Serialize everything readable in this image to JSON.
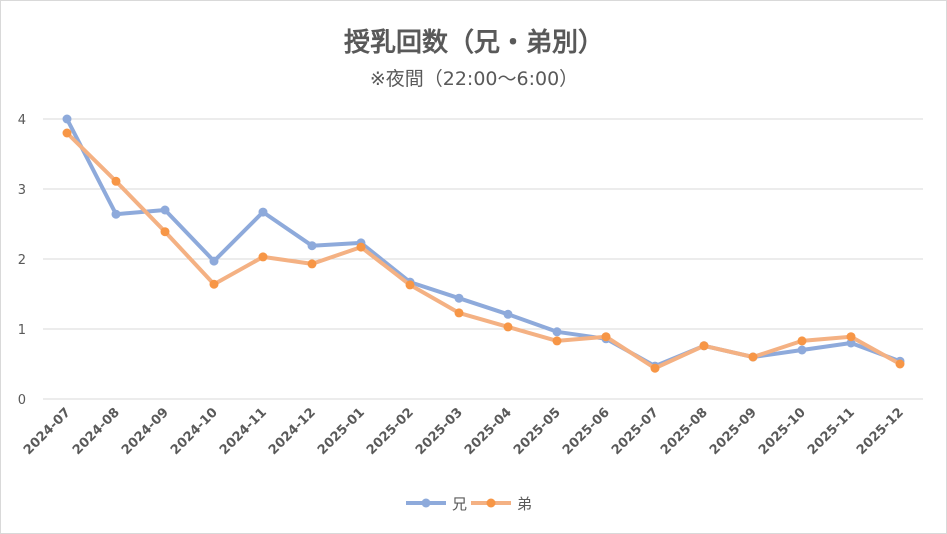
{
  "chart_data": {
    "type": "line",
    "title": "授乳回数（兄・弟別）",
    "subtitle": "※夜間（22:00～6:00）",
    "xlabel": "",
    "ylabel": "",
    "ylim": [
      0,
      4
    ],
    "yticks": [
      "0",
      "1",
      "2",
      "3",
      "4"
    ],
    "grid": true,
    "legend_position": "bottom",
    "categories": [
      "2024-07",
      "2024-08",
      "2024-09",
      "2024-10",
      "2024-11",
      "2024-12",
      "2025-01",
      "2025-02",
      "2025-03",
      "2025-04",
      "2025-05",
      "2025-06",
      "2025-07",
      "2025-08",
      "2025-09",
      "2025-10",
      "2025-11",
      "2025-12"
    ],
    "series": [
      {
        "name": "兄",
        "color": "#8eaadb",
        "values": [
          4.0,
          2.64,
          2.7,
          1.97,
          2.67,
          2.19,
          2.23,
          1.67,
          1.44,
          1.21,
          0.96,
          0.86,
          0.47,
          0.76,
          0.6,
          0.7,
          0.8,
          0.54
        ]
      },
      {
        "name": "弟",
        "color": "#f4b183",
        "marker_color": "#f79646",
        "values": [
          3.8,
          3.11,
          2.39,
          1.64,
          2.03,
          1.93,
          2.17,
          1.63,
          1.23,
          1.03,
          0.83,
          0.89,
          0.44,
          0.76,
          0.6,
          0.83,
          0.89,
          0.5
        ]
      }
    ]
  }
}
